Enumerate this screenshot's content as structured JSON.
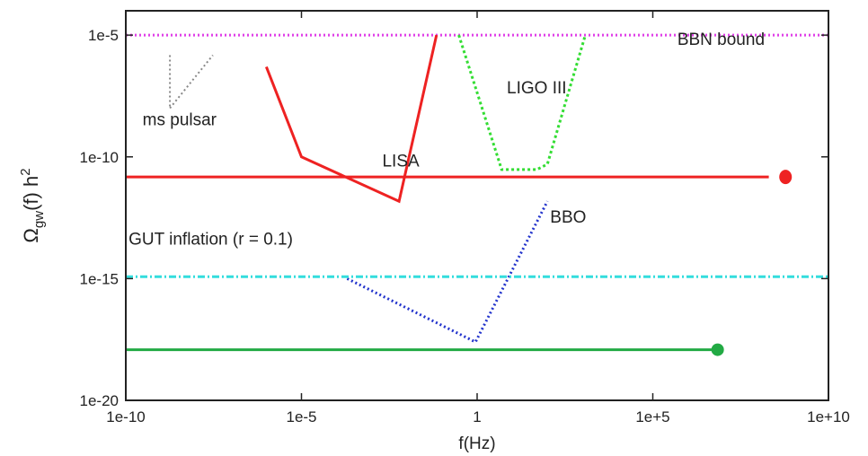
{
  "chart_data": {
    "type": "line",
    "title": "",
    "xlabel": "f(Hz)",
    "ylabel": {
      "base": "Ω",
      "sub": "gw",
      "mid": "(f) h",
      "sup": "2"
    },
    "x_scale": "log",
    "y_scale": "log",
    "xlim": [
      1e-10,
      10000000000.0
    ],
    "ylim": [
      1e-20,
      0.0001
    ],
    "x_ticks": [
      {
        "value": 1e-10,
        "label": "1e-10"
      },
      {
        "value": 1e-05,
        "label": "1e-5"
      },
      {
        "value": 1,
        "label": "1"
      },
      {
        "value": 100000.0,
        "label": "1e+5"
      },
      {
        "value": 10000000000.0,
        "label": "1e+10"
      }
    ],
    "y_ticks": [
      {
        "value": 1e-05,
        "label": "1e-5"
      },
      {
        "value": 1e-10,
        "label": "1e-10"
      },
      {
        "value": 1e-15,
        "label": "1e-15"
      },
      {
        "value": 1e-20,
        "label": "1e-20"
      }
    ],
    "grid": false,
    "series": [
      {
        "id": "bbn",
        "color": "#e040e8",
        "dash": "2,3",
        "width": 3,
        "x": [
          1e-10,
          10000000000.0
        ],
        "y": [
          1e-05,
          1e-05
        ]
      },
      {
        "id": "ms-pulsar-a",
        "color": "#888888",
        "dash": "2,3",
        "width": 2,
        "x": [
          1.8e-09,
          1.8e-09
        ],
        "y": [
          1.5e-06,
          1e-08
        ]
      },
      {
        "id": "ms-pulsar-b",
        "color": "#888888",
        "dash": "2,3",
        "width": 2,
        "x": [
          1.8e-09,
          3e-08
        ],
        "y": [
          1e-08,
          1.5e-06
        ]
      },
      {
        "id": "lisa",
        "color": "#ee2222",
        "dash": "",
        "width": 3,
        "x": [
          1e-06,
          1e-05,
          0.006,
          0.07
        ],
        "y": [
          5e-07,
          1e-10,
          1.5e-12,
          1e-05
        ]
      },
      {
        "id": "ligo-iii",
        "color": "#33dd33",
        "dash": "3,3",
        "width": 3,
        "x": [
          0.3,
          5.0,
          50.0,
          100.0,
          1200.0
        ],
        "y": [
          1e-05,
          3e-11,
          3e-11,
          5e-11,
          1e-05
        ]
      },
      {
        "id": "bbo",
        "color": "#2233cc",
        "dash": "2,3",
        "width": 3,
        "x": [
          0.0002,
          0.9,
          100.0
        ],
        "y": [
          1e-15,
          2.5e-18,
          1.5e-12
        ]
      },
      {
        "id": "lisa-sensitivity",
        "color": "#ee2222",
        "dash": "",
        "width": 3,
        "x": [
          1e-10,
          200000000.0
        ],
        "y": [
          1.5e-11,
          1.5e-11
        ]
      },
      {
        "id": "gut-inflation",
        "color": "#33dddd",
        "dash": "8,3,2,3",
        "width": 3,
        "x": [
          1e-10,
          10000000000.0
        ],
        "y": [
          1.2e-15,
          1.2e-15
        ]
      },
      {
        "id": "green-line",
        "color": "#22aa44",
        "dash": "",
        "width": 3,
        "x": [
          1e-10,
          7000000.0
        ],
        "y": [
          1.2e-18,
          1.2e-18
        ]
      }
    ],
    "markers": [
      {
        "id": "red-dot",
        "color": "#ee2222",
        "x": 600000000.0,
        "y": 1.5e-11,
        "rx": 7,
        "ry": 8
      },
      {
        "id": "green-dot",
        "color": "#22aa44",
        "x": 7000000.0,
        "y": 1.2e-18,
        "rx": 7,
        "ry": 7
      }
    ],
    "annotations": [
      {
        "id": "bbn-label",
        "text": "BBN bound",
        "x": 500000.0,
        "y": 4e-06
      },
      {
        "id": "ligo-label",
        "text": "LIGO III",
        "x": 7.0,
        "y": 4e-08
      },
      {
        "id": "ms-pulsar-label",
        "text": "ms pulsar",
        "x": 3e-10,
        "y": 2e-09
      },
      {
        "id": "lisa-label",
        "text": "LISA",
        "x": 0.002,
        "y": 4e-11
      },
      {
        "id": "bbo-label",
        "text": "BBO",
        "x": 120.0,
        "y": 2e-13
      },
      {
        "id": "gut-label",
        "text": "GUT inflation (r = 0.1)",
        "x": 1.2e-10,
        "y": 2.5e-14
      }
    ]
  }
}
